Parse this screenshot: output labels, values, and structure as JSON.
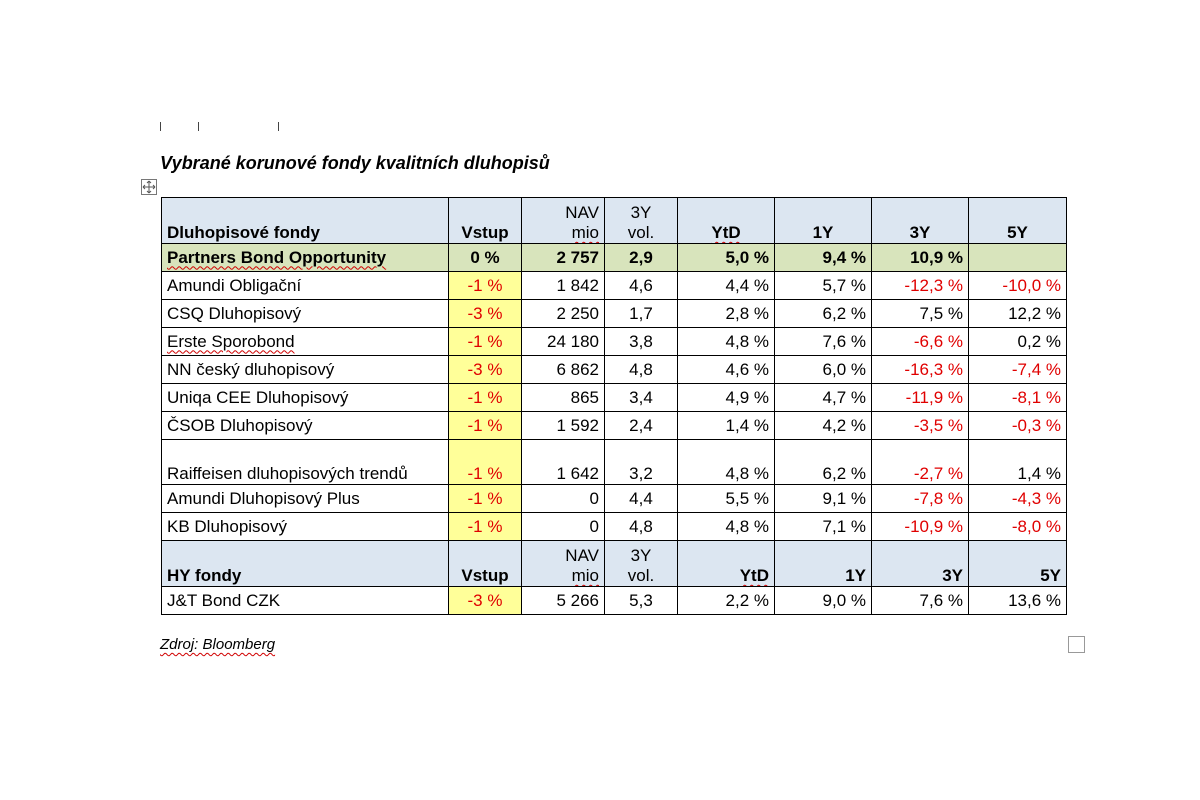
{
  "title": "Vybrané korunové fondy kvalitních dluhopisů",
  "source": "Zdroj: Bloomberg",
  "headers": {
    "bond_funds": "Dluhopisové fondy",
    "hy_funds": "HY fondy",
    "entry": "Vstup",
    "nav_top": "NAV",
    "nav_bottom": "mio",
    "vol_top": "3Y",
    "vol_bottom": "vol.",
    "ytd": "YtD",
    "y1": "1Y",
    "y3": "3Y",
    "y5": "5Y"
  },
  "highlight": {
    "name": "Partners Bond Opportunity",
    "entry": "0 %",
    "nav": "2 757",
    "vol": "2,9",
    "ytd": "5,0 %",
    "y1": "9,4 %",
    "y3": "10,9 %",
    "y5": ""
  },
  "bond_rows": [
    {
      "name": "Amundi Obligační",
      "entry": "-1 %",
      "nav": "1 842",
      "vol": "4,6",
      "ytd": "4,4 %",
      "y1": "5,7 %",
      "y3": "-12,3 %",
      "y5": "-10,0 %"
    },
    {
      "name": "CSQ Dluhopisový",
      "entry": "-3 %",
      "nav": "2 250",
      "vol": "1,7",
      "ytd": "2,8 %",
      "y1": "6,2 %",
      "y3": "7,5 %",
      "y5": "12,2 %"
    },
    {
      "name": "Erste Sporobond",
      "entry": "-1 %",
      "nav": "24 180",
      "vol": "3,8",
      "ytd": "4,8 %",
      "y1": "7,6 %",
      "y3": "-6,6 %",
      "y5": "0,2 %"
    },
    {
      "name": "NN český dluhopisový",
      "entry": "-3 %",
      "nav": "6 862",
      "vol": "4,8",
      "ytd": "4,6 %",
      "y1": "6,0 %",
      "y3": "-16,3 %",
      "y5": "-7,4 %"
    },
    {
      "name": "Uniqa CEE Dluhopisový",
      "entry": "-1 %",
      "nav": "865",
      "vol": "3,4",
      "ytd": "4,9 %",
      "y1": "4,7 %",
      "y3": "-11,9 %",
      "y5": "-8,1 %"
    },
    {
      "name": "ČSOB Dluhopisový",
      "entry": "-1 %",
      "nav": "1 592",
      "vol": "2,4",
      "ytd": "1,4 %",
      "y1": "4,2 %",
      "y3": "-3,5 %",
      "y5": "-0,3 %"
    },
    {
      "name": "Raiffeisen dluhopisových trendů",
      "entry": "-1 %",
      "nav": "1 642",
      "vol": "3,2",
      "ytd": "4,8 %",
      "y1": "6,2 %",
      "y3": "-2,7 %",
      "y5": "1,4 %"
    },
    {
      "name": "Amundi Dluhopisový Plus",
      "entry": "-1 %",
      "nav": "0",
      "vol": "4,4",
      "ytd": "5,5 %",
      "y1": "9,1 %",
      "y3": "-7,8 %",
      "y5": "-4,3 %"
    },
    {
      "name": "KB Dluhopisový",
      "entry": "-1 %",
      "nav": "0",
      "vol": "4,8",
      "ytd": "4,8 %",
      "y1": "7,1 %",
      "y3": "-10,9 %",
      "y5": "-8,0 %"
    }
  ],
  "hy_rows": [
    {
      "name": "J&T Bond CZK",
      "entry": "-3 %",
      "nav": "5 266",
      "vol": "5,3",
      "ytd": "2,2 %",
      "y1": "9,0 %",
      "y3": "7,6 %",
      "y5": "13,6 %"
    }
  ],
  "colors": {
    "header_bg": "#dce6f1",
    "highlight_bg": "#d8e4bc",
    "entry_bg": "#ffff99",
    "negative": "#e00000"
  },
  "icons": {
    "table_handle": "move-icon"
  }
}
